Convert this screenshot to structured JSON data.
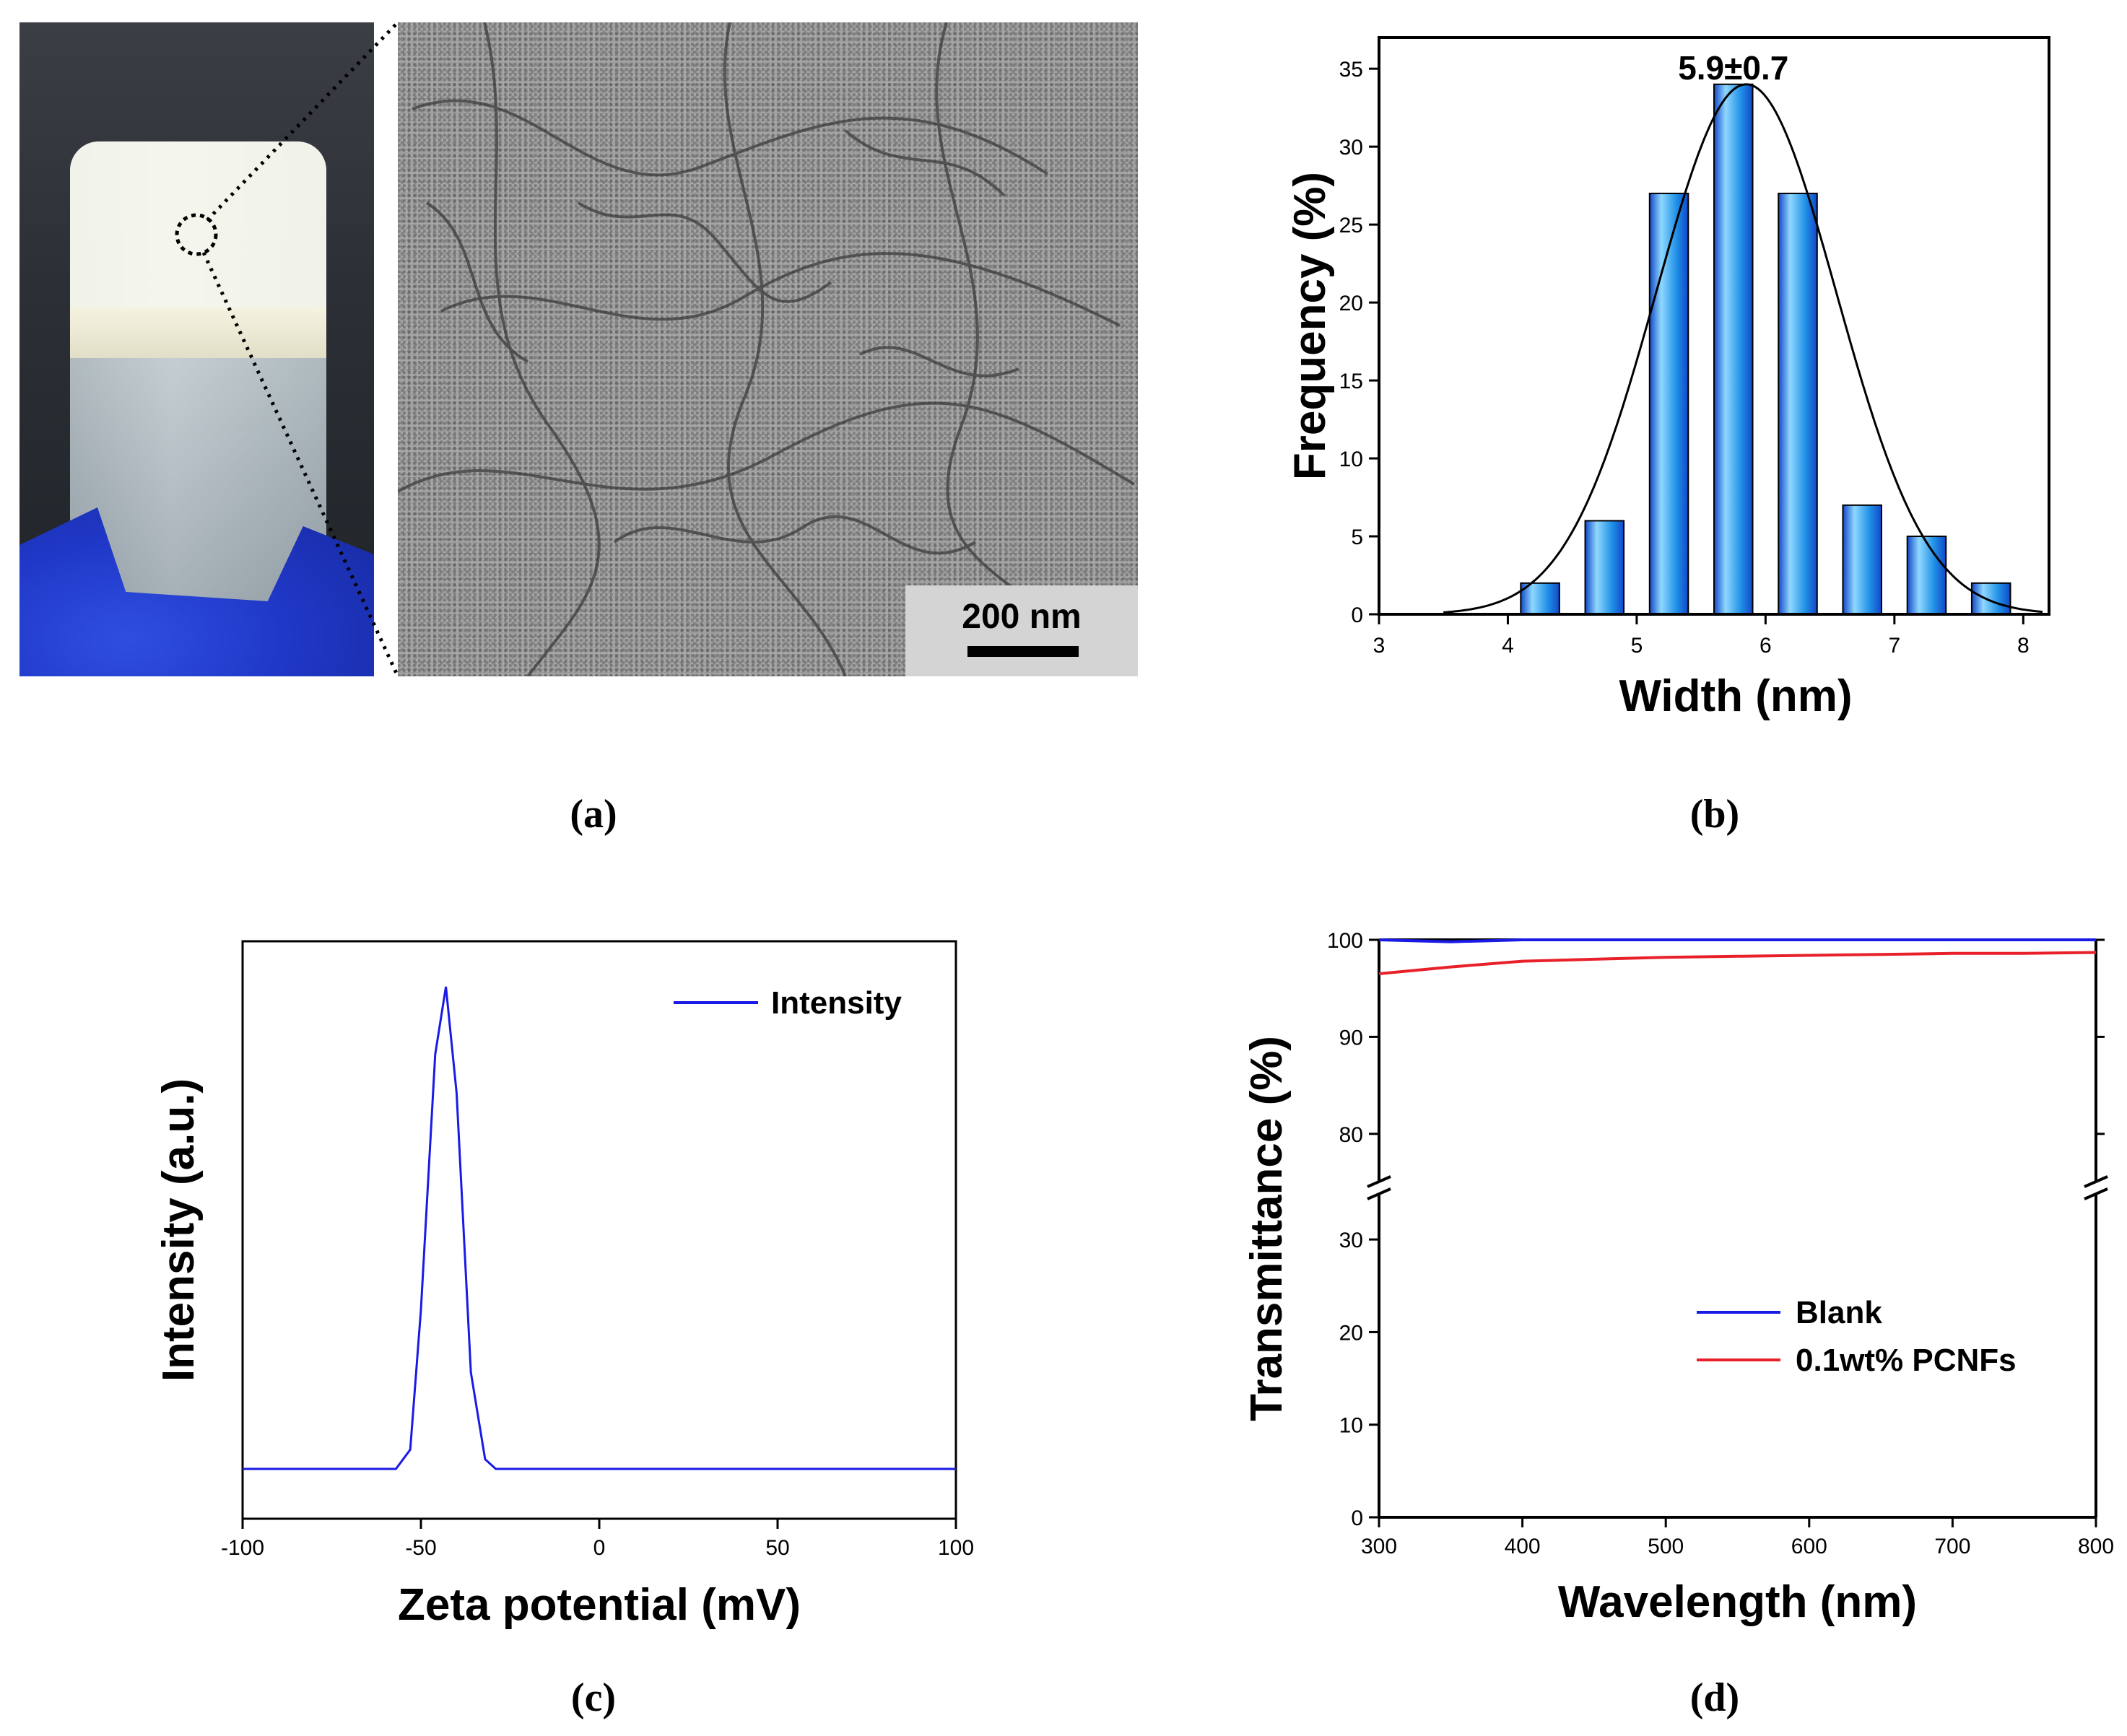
{
  "panel_labels": {
    "a": "(a)",
    "b": "(b)",
    "c": "(c)",
    "d": "(d)"
  },
  "panel_a": {
    "scale_bar_label": "200 nm"
  },
  "chart_data": [
    {
      "panel": "b",
      "type": "bar",
      "xlabel": "Width (nm)",
      "ylabel": "Frequency (%)",
      "annotation": "5.9±0.7",
      "xlim": [
        3,
        8.2
      ],
      "ylim": [
        0,
        37
      ],
      "xticks": [
        3,
        4,
        5,
        6,
        7,
        8
      ],
      "yticks": [
        0,
        5,
        10,
        15,
        20,
        25,
        30,
        35
      ],
      "bar_width": 0.3,
      "bars": [
        {
          "x": 4.25,
          "value": 2
        },
        {
          "x": 4.75,
          "value": 6
        },
        {
          "x": 5.25,
          "value": 27
        },
        {
          "x": 5.75,
          "value": 34
        },
        {
          "x": 6.25,
          "value": 27
        },
        {
          "x": 6.75,
          "value": 7
        },
        {
          "x": 7.25,
          "value": 5
        },
        {
          "x": 7.75,
          "value": 2
        }
      ],
      "fit": {
        "type": "gaussian",
        "mean": 5.85,
        "sd": 0.7,
        "peak": 34,
        "x_range": [
          3.5,
          8.15
        ]
      },
      "colors": {
        "bar_top": "#8fd8ff",
        "bar_mid": "#1f8fe6",
        "bar_bottom": "#1248c8",
        "fit": "#000000"
      }
    },
    {
      "panel": "c",
      "type": "line",
      "xlabel": "Zeta potential (mV)",
      "ylabel": "Intensity (a.u.)",
      "xlim": [
        -100,
        100
      ],
      "ylim": [
        0,
        1.1
      ],
      "xticks": [
        -100,
        -50,
        0,
        50,
        100
      ],
      "series": [
        {
          "name": "Intensity",
          "color": "#1a1ae6",
          "x": [
            -100,
            -57,
            -53,
            -50,
            -46,
            -43,
            -40,
            -36,
            -32,
            -29,
            100
          ],
          "y": [
            0,
            0,
            0.04,
            0.33,
            0.86,
            1.0,
            0.78,
            0.2,
            0.02,
            0,
            0
          ]
        }
      ],
      "legend": {
        "position": "top-right"
      }
    },
    {
      "panel": "d",
      "type": "line",
      "xlabel": "Wavelength (nm)",
      "ylabel": "Transmittance (%)",
      "xlim": [
        300,
        800
      ],
      "y_broken_axis": {
        "lower": [
          0,
          35
        ],
        "upper": [
          75,
          100
        ]
      },
      "xticks": [
        300,
        400,
        500,
        600,
        700,
        800
      ],
      "yticks_lower": [
        0,
        10,
        20,
        30
      ],
      "yticks_upper": [
        80,
        90,
        100
      ],
      "series": [
        {
          "name": "Blank",
          "color": "#1a1ae6",
          "x": [
            300,
            350,
            400,
            450,
            500,
            550,
            600,
            650,
            700,
            750,
            800
          ],
          "y": [
            100,
            99.8,
            100,
            100,
            100,
            100,
            100,
            100,
            100,
            100,
            100
          ]
        },
        {
          "name": "0.1wt% PCNFs",
          "color": "#e8202a",
          "x": [
            300,
            350,
            400,
            450,
            500,
            550,
            600,
            650,
            700,
            750,
            800
          ],
          "y": [
            96.5,
            97.2,
            97.8,
            98.0,
            98.2,
            98.3,
            98.4,
            98.5,
            98.6,
            98.6,
            98.7
          ]
        }
      ],
      "legend": {
        "position": "bottom-right"
      }
    }
  ]
}
